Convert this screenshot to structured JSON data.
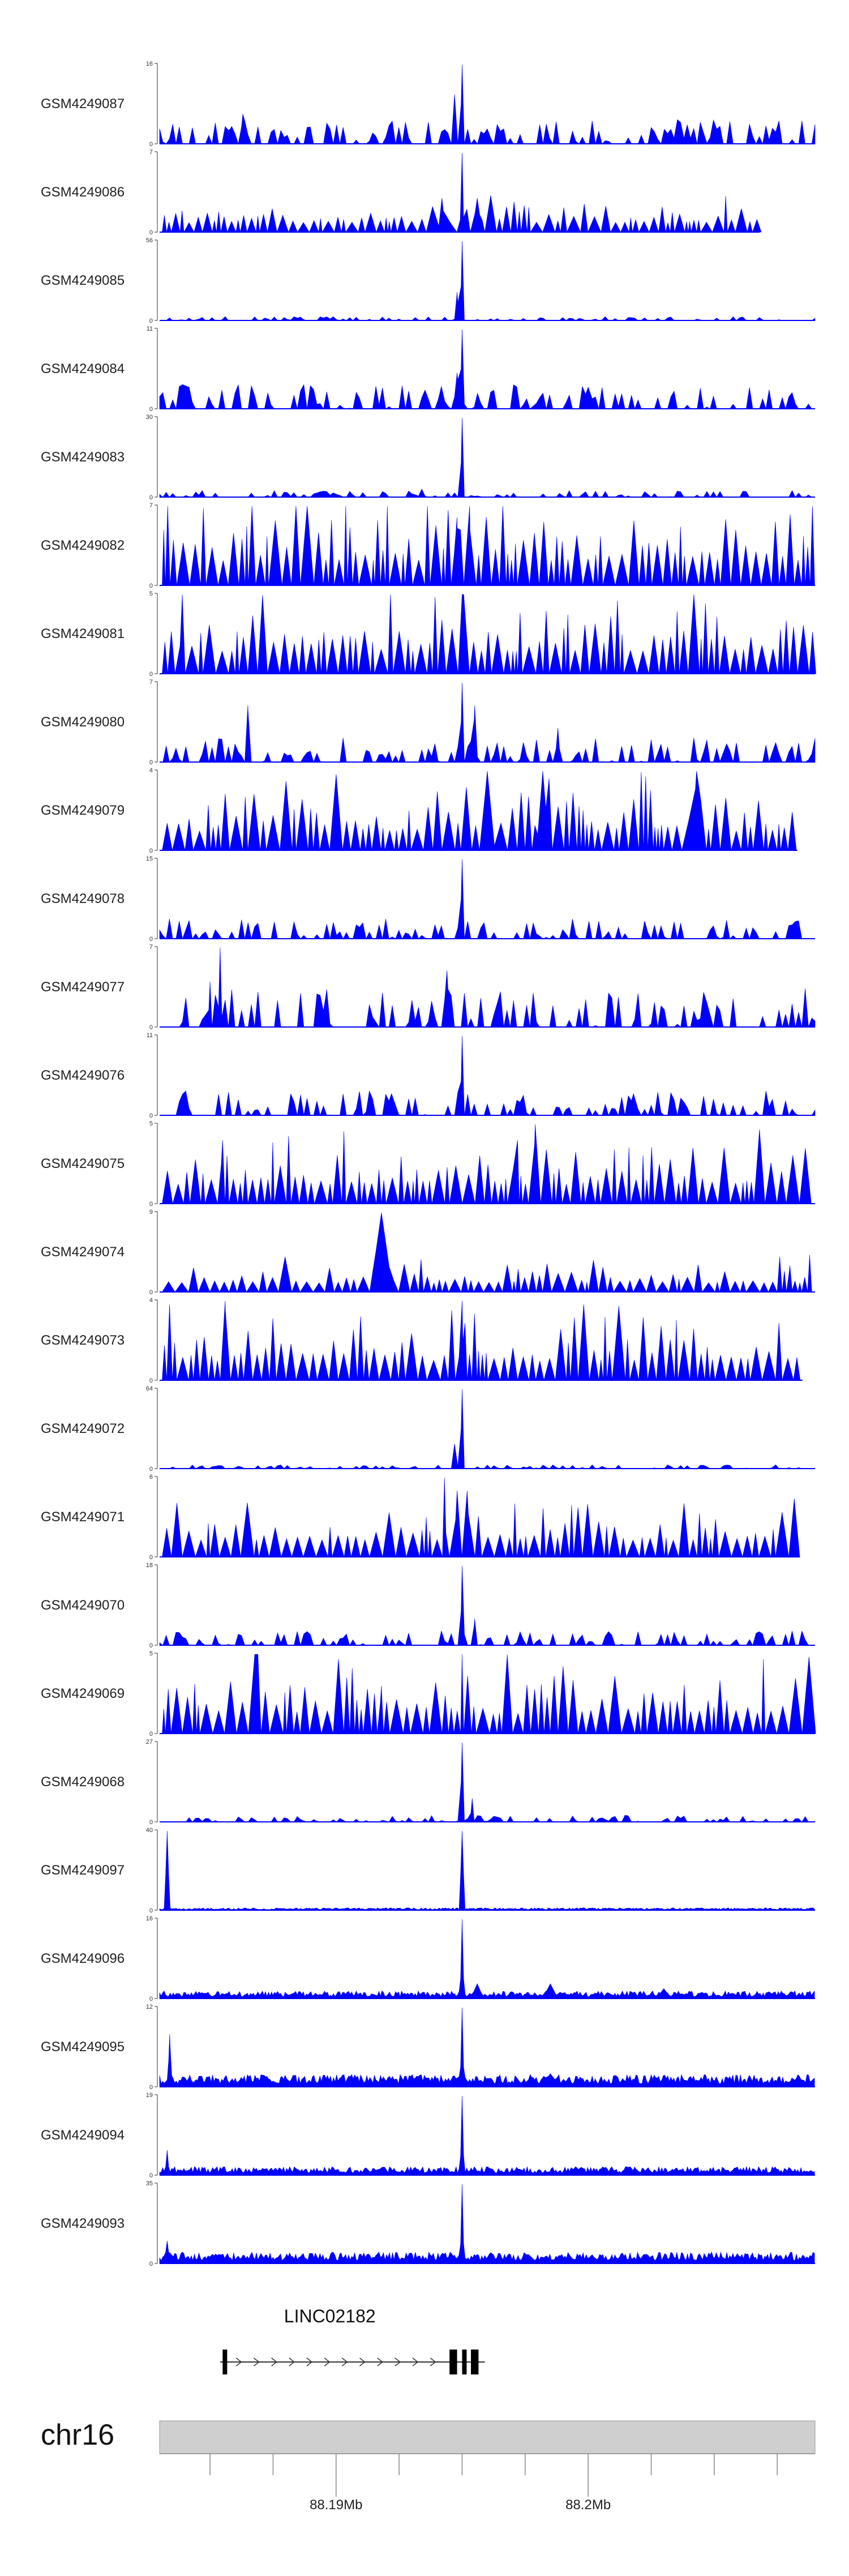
{
  "chart_data": {
    "type": "area",
    "fill_color": "#0000ff",
    "region": {
      "chromosome": "chr16",
      "start": 88183000,
      "end": 88209000
    },
    "genome_axis": {
      "ticks_bp": [
        88185000,
        88187500,
        88190000,
        88192500,
        88195000,
        88197500,
        88200000,
        88202500,
        88205000,
        88207500
      ],
      "labeled_ticks": [
        {
          "bp": 88190000,
          "label": "88.19Mb"
        },
        {
          "bp": 88200000,
          "label": "88.2Mb"
        }
      ]
    },
    "gene": {
      "name": "LINC02182",
      "start": 88185400,
      "end": 88195900,
      "strand": "+",
      "exons": [
        {
          "start": 88185500,
          "end": 88185650
        },
        {
          "start": 88194500,
          "end": 88194800
        },
        {
          "start": 88195000,
          "end": 88195150
        },
        {
          "start": 88195350,
          "end": 88195650
        }
      ]
    },
    "tracks": [
      {
        "name": "GSM4249087",
        "ymax": 16,
        "ymax_label": "16",
        "ymin_label": "0",
        "pattern": "sparse",
        "seed": 11,
        "bg": 0.22,
        "peaks": [
          [
            88195000,
            16,
            80
          ],
          [
            88194700,
            10,
            120
          ],
          [
            88186300,
            6,
            120
          ],
          [
            88185800,
            3,
            100
          ]
        ]
      },
      {
        "name": "GSM4249086",
        "ymax": 7,
        "ymax_label": "7",
        "ymin_label": "0",
        "pattern": "triangles",
        "seed": 12,
        "tri": 0.34,
        "data_end": 88206800,
        "peaks": [
          [
            88195000,
            7,
            70
          ],
          [
            88195600,
            3,
            200
          ],
          [
            88194200,
            3,
            150
          ]
        ]
      },
      {
        "name": "GSM4249085",
        "ymax": 56,
        "ymax_label": "56",
        "ymin_label": "0",
        "pattern": "sparse",
        "seed": 13,
        "bg": 0.035,
        "peaks": [
          [
            88195000,
            56,
            70
          ],
          [
            88194800,
            20,
            80
          ]
        ]
      },
      {
        "name": "GSM4249084",
        "ymax": 11,
        "ymax_label": "11",
        "ymin_label": "0",
        "pattern": "sparse",
        "seed": 14,
        "bg": 0.22,
        "peaks": [
          [
            88195000,
            11,
            80
          ],
          [
            88194800,
            5,
            150
          ],
          [
            88200000,
            3,
            300
          ]
        ]
      },
      {
        "name": "GSM4249083",
        "ymax": 30,
        "ymax_label": "30",
        "ymin_label": "0",
        "pattern": "sparse",
        "seed": 15,
        "bg": 0.06,
        "peaks": [
          [
            88195000,
            30,
            70
          ],
          [
            88193400,
            3,
            150
          ]
        ]
      },
      {
        "name": "GSM4249082",
        "ymax": 7,
        "ymax_label": "7",
        "ymin_label": "0",
        "pattern": "triangles",
        "seed": 16,
        "tri": 0.9,
        "peaks": [
          [
            88194800,
            6,
            40
          ],
          [
            88195300,
            7,
            40
          ]
        ]
      },
      {
        "name": "GSM4249081",
        "ymax": 5,
        "ymax_label": "5",
        "ymin_label": "0",
        "pattern": "triangles",
        "seed": 17,
        "tri": 0.8,
        "peaks": [
          [
            88195000,
            5,
            50
          ],
          [
            88183900,
            5,
            60
          ]
        ]
      },
      {
        "name": "GSM4249080",
        "ymax": 7,
        "ymax_label": "7",
        "ymin_label": "0",
        "pattern": "sparse",
        "seed": 18,
        "bg": 0.22,
        "peaks": [
          [
            88195000,
            7,
            80
          ],
          [
            88195500,
            5,
            80
          ],
          [
            88186500,
            5,
            100
          ],
          [
            88198800,
            3,
            100
          ]
        ]
      },
      {
        "name": "GSM4249079",
        "ymax": 4,
        "ymax_label": "4",
        "ymin_label": "0",
        "pattern": "triangles",
        "seed": 19,
        "tri": 0.7,
        "data_end": 88208300,
        "peaks": [
          [
            88196000,
            4,
            300
          ],
          [
            88198200,
            4,
            250
          ],
          [
            88204300,
            4,
            200
          ]
        ]
      },
      {
        "name": "GSM4249078",
        "ymax": 15,
        "ymax_label": "15",
        "ymin_label": "0",
        "pattern": "sparse",
        "seed": 20,
        "bg": 0.18,
        "peaks": [
          [
            88195000,
            15,
            80
          ]
        ]
      },
      {
        "name": "GSM4249077",
        "ymax": 7,
        "ymax_label": "7",
        "ymin_label": "0",
        "pattern": "sparse",
        "seed": 21,
        "bg": 0.35,
        "peaks": [
          [
            88185400,
            7,
            80
          ],
          [
            88194400,
            5,
            120
          ],
          [
            88185000,
            4,
            80
          ]
        ]
      },
      {
        "name": "GSM4249076",
        "ymax": 11,
        "ymax_label": "11",
        "ymin_label": "0",
        "pattern": "sparse",
        "seed": 22,
        "bg": 0.22,
        "peaks": [
          [
            88195000,
            11,
            70
          ],
          [
            88192200,
            3,
            300
          ],
          [
            88201800,
            3,
            250
          ]
        ]
      },
      {
        "name": "GSM4249075",
        "ymax": 5,
        "ymax_label": "5",
        "ymin_label": "0",
        "pattern": "triangles",
        "seed": 23,
        "tri": 0.7,
        "peaks": [
          [
            88185500,
            4,
            60
          ],
          [
            88197900,
            5,
            60
          ],
          [
            88197200,
            4,
            60
          ]
        ]
      },
      {
        "name": "GSM4249074",
        "ymax": 9,
        "ymax_label": "9",
        "ymin_label": "0",
        "pattern": "triangles",
        "seed": 24,
        "tri": 0.32,
        "peaks": [
          [
            88191800,
            9,
            450
          ],
          [
            88208000,
            3,
            100
          ]
        ]
      },
      {
        "name": "GSM4249073",
        "ymax": 4,
        "ymax_label": "4",
        "ymin_label": "0",
        "pattern": "triangles",
        "seed": 25,
        "tri": 0.7,
        "data_end": 88208500,
        "peaks": [
          [
            88185600,
            4,
            80
          ],
          [
            88195000,
            4,
            60
          ]
        ]
      },
      {
        "name": "GSM4249072",
        "ymax": 64,
        "ymax_label": "64",
        "ymin_label": "0",
        "pattern": "sparse",
        "seed": 26,
        "bg": 0.035,
        "peaks": [
          [
            88195000,
            64,
            80
          ],
          [
            88194700,
            20,
            100
          ]
        ]
      },
      {
        "name": "GSM4249071",
        "ymax": 6,
        "ymax_label": "6",
        "ymin_label": "0",
        "pattern": "triangles",
        "seed": 27,
        "tri": 0.6,
        "data_end": 88208400,
        "peaks": [
          [
            88194300,
            6,
            60
          ],
          [
            88194800,
            5,
            60
          ],
          [
            88195200,
            5,
            60
          ]
        ]
      },
      {
        "name": "GSM4249070",
        "ymax": 18,
        "ymax_label": "18",
        "ymin_label": "0",
        "pattern": "sparse",
        "seed": 28,
        "bg": 0.13,
        "peaks": [
          [
            88195000,
            18,
            70
          ],
          [
            88195500,
            6,
            80
          ]
        ]
      },
      {
        "name": "GSM4249069",
        "ymax": 5,
        "ymax_label": "5",
        "ymin_label": "0",
        "pattern": "triangles",
        "seed": 29,
        "tri": 0.7,
        "peaks": [
          [
            88186900,
            5,
            80
          ],
          [
            88195000,
            5,
            60
          ],
          [
            88191800,
            3,
            60
          ]
        ]
      },
      {
        "name": "GSM4249068",
        "ymax": 27,
        "ymax_label": "27",
        "ymin_label": "0",
        "pattern": "sparse",
        "seed": 30,
        "bg": 0.06,
        "peaks": [
          [
            88195000,
            27,
            80
          ],
          [
            88195400,
            8,
            80
          ]
        ]
      },
      {
        "name": "GSM4249097",
        "ymax": 40,
        "ymax_label": "40",
        "ymin_label": "0",
        "pattern": "dense",
        "seed": 31,
        "bg": 0.025,
        "peaks": [
          [
            88183300,
            40,
            110
          ],
          [
            88195000,
            40,
            110
          ]
        ]
      },
      {
        "name": "GSM4249096",
        "ymax": 16,
        "ymax_label": "16",
        "ymin_label": "0",
        "pattern": "dense",
        "seed": 32,
        "bg": 0.08,
        "peaks": [
          [
            88195000,
            16,
            80
          ],
          [
            88195600,
            3,
            250
          ],
          [
            88198500,
            3,
            300
          ],
          [
            88203000,
            2,
            300
          ]
        ]
      },
      {
        "name": "GSM4249095",
        "ymax": 12,
        "ymax_label": "12",
        "ymin_label": "0",
        "pattern": "dense",
        "seed": 33,
        "bg": 0.13,
        "peaks": [
          [
            88183400,
            8,
            80
          ],
          [
            88195000,
            12,
            80
          ],
          [
            88198500,
            2,
            400
          ]
        ]
      },
      {
        "name": "GSM4249094",
        "ymax": 19,
        "ymax_label": "19",
        "ymin_label": "0",
        "pattern": "dense",
        "seed": 34,
        "bg": 0.09,
        "peaks": [
          [
            88183300,
            6,
            90
          ],
          [
            88195000,
            19,
            80
          ]
        ]
      },
      {
        "name": "GSM4249093",
        "ymax": 35,
        "ymax_label": "35",
        "ymin_label": "0",
        "pattern": "dense",
        "seed": 35,
        "bg": 0.12,
        "peaks": [
          [
            88183300,
            10,
            120
          ],
          [
            88195000,
            35,
            80
          ]
        ]
      }
    ]
  }
}
